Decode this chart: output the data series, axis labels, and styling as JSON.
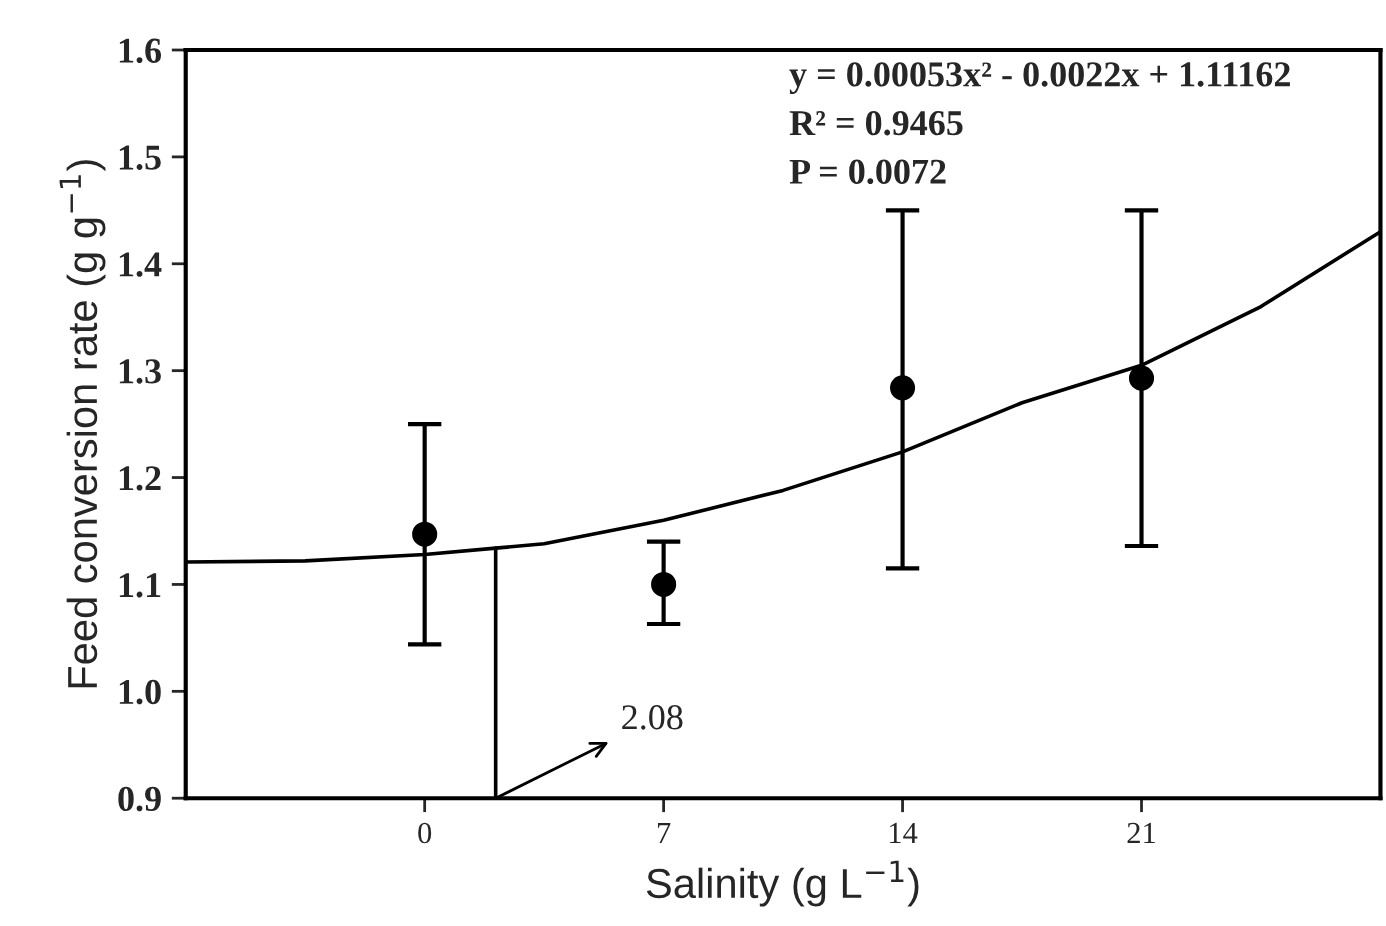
{
  "chart_data": {
    "type": "scatter",
    "xlabel": "Salinity (g L$^{−1}$)",
    "ylabel": "Feed conversion rate (g g$^{−1}$)",
    "xlim": [
      -7,
      28
    ],
    "xticks": [
      0,
      7,
      14,
      21
    ],
    "ylim": [
      0.9,
      1.6
    ],
    "yticks": [
      {
        "value": 0.9,
        "label": "0.9"
      },
      {
        "value": 1.0,
        "label": "1.0"
      },
      1.1,
      1.2,
      1.3,
      1.4,
      1.5,
      1.6
    ],
    "grid": false,
    "legend": false,
    "marker": "circle",
    "series": [
      {
        "color": "#000000",
        "x": [
          0,
          7,
          14,
          21
        ],
        "values": [
          1.147,
          1.1,
          1.284,
          1.293
        ],
        "errors": [
          [
            1.044,
            1.25
          ],
          [
            1.063,
            1.14
          ],
          [
            1.115,
            1.45
          ],
          [
            1.136,
            1.45
          ]
        ]
      },
      {
        "type": "line",
        "color": "#000000",
        "marker": "none",
        "line_style": "solid",
        "x": [
          -7,
          -3.5,
          0,
          2.08,
          3.5,
          7,
          10.5,
          14,
          17.5,
          21,
          24.5,
          28
        ],
        "values": [
          1.121,
          1.122,
          1.128,
          1.134,
          1.138,
          1.16,
          1.188,
          1.224,
          1.27,
          1.305,
          1.36,
          1.43
        ]
      },
      {
        "type": "line",
        "color": "#000000",
        "marker": "none",
        "line_style": "solid",
        "x": [
          2.08,
          2.08
        ],
        "values": [
          0.9,
          1.134
        ]
      }
    ],
    "annotations": [
      "y = 0.00053x² - 0.0022x + 1.11162",
      "R² = 0.9465",
      "P = 0.0072",
      {
        "text": "2.08",
        "x": 2.08,
        "y": 0.9
      }
    ]
  }
}
